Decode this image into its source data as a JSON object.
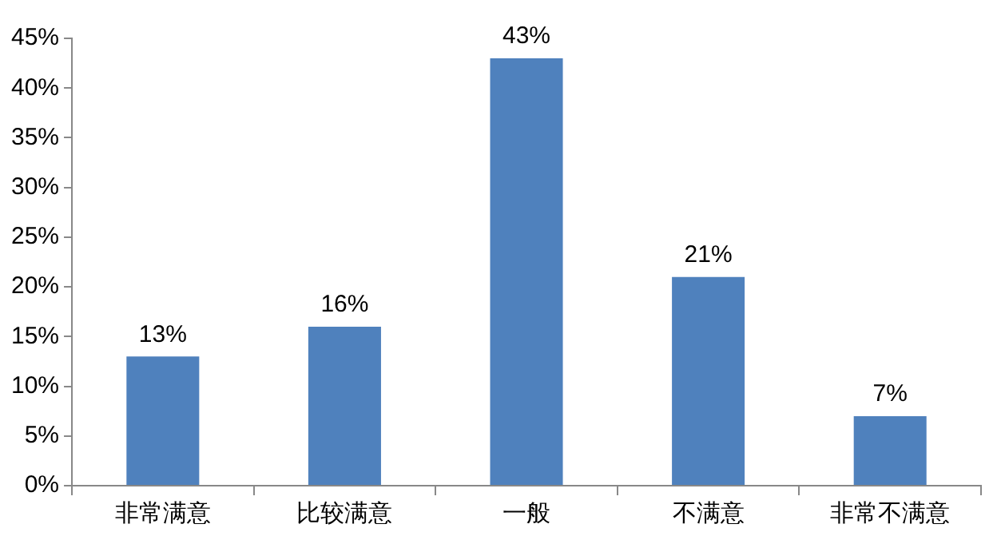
{
  "chart_data": {
    "type": "bar",
    "categories": [
      "非常满意",
      "比较满意",
      "一般",
      "不满意",
      "非常不满意"
    ],
    "values": [
      13,
      16,
      43,
      21,
      7
    ],
    "value_labels": [
      "13%",
      "16%",
      "43%",
      "21%",
      "7%"
    ],
    "color": "#4f81bd",
    "ylim": [
      0,
      45
    ],
    "yticks": [
      {
        "value": 0,
        "label": "0%"
      },
      {
        "value": 5,
        "label": "5%"
      },
      {
        "value": 10,
        "label": "10%"
      },
      {
        "value": 15,
        "label": "15%"
      },
      {
        "value": 20,
        "label": "20%"
      },
      {
        "value": 25,
        "label": "25%"
      },
      {
        "value": 30,
        "label": "30%"
      },
      {
        "value": 35,
        "label": "35%"
      },
      {
        "value": 40,
        "label": "40%"
      },
      {
        "value": 45,
        "label": "45%"
      }
    ],
    "grid": false,
    "legend": false
  }
}
